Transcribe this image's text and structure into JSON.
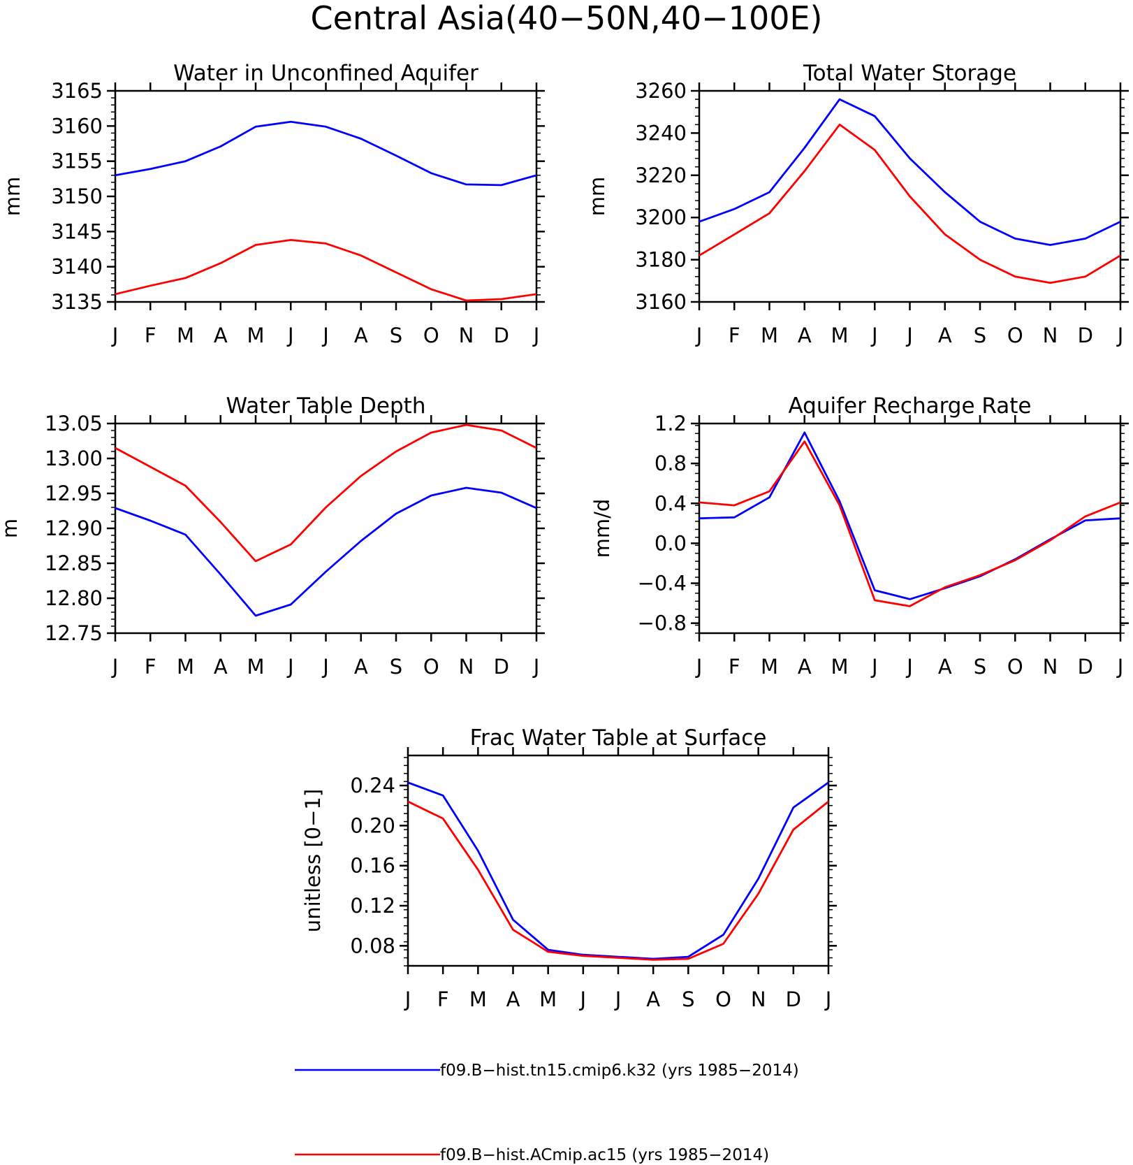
{
  "figure": {
    "title": "Central Asia(40−50N,40−100E)"
  },
  "legend": {
    "entries": [
      {
        "label": "f09.B−hist.tn15.cmip6.k32 (yrs 1985−2014)",
        "color": "#0000ff"
      },
      {
        "label": "f09.B−hist.ACmip.ac15 (yrs 1985−2014)",
        "color": "#ff0000"
      }
    ]
  },
  "chart_data": [
    {
      "type": "line",
      "title": "Water in Unconfined Aquifer",
      "ylabel": "mm",
      "xlabel": "",
      "categories": [
        "J",
        "F",
        "M",
        "A",
        "M",
        "J",
        "J",
        "A",
        "S",
        "O",
        "N",
        "D",
        "J"
      ],
      "ylim": [
        3135,
        3165
      ],
      "yticks": [
        "3135",
        "3140",
        "3145",
        "3150",
        "3155",
        "3160",
        "3165"
      ],
      "grid": false,
      "series": [
        {
          "name": "f09.B−hist.tn15.cmip6.k32 (yrs 1985−2014)",
          "color": "#0000ff",
          "values": [
            3153.0,
            3153.9,
            3155.0,
            3157.1,
            3159.9,
            3160.6,
            3159.9,
            3158.2,
            3155.8,
            3153.3,
            3151.7,
            3151.6,
            3153.0
          ]
        },
        {
          "name": "f09.B−hist.ACmip.ac15 (yrs 1985−2014)",
          "color": "#ff0000",
          "values": [
            3136.1,
            3137.3,
            3138.4,
            3140.5,
            3143.1,
            3143.8,
            3143.3,
            3141.6,
            3139.2,
            3136.8,
            3135.2,
            3135.4,
            3136.1
          ]
        }
      ]
    },
    {
      "type": "line",
      "title": "Total Water Storage",
      "ylabel": "mm",
      "xlabel": "",
      "categories": [
        "J",
        "F",
        "M",
        "A",
        "M",
        "J",
        "J",
        "A",
        "S",
        "O",
        "N",
        "D",
        "J"
      ],
      "ylim": [
        3160,
        3260
      ],
      "yticks": [
        "3160",
        "3180",
        "3200",
        "3220",
        "3240",
        "3260"
      ],
      "grid": false,
      "series": [
        {
          "name": "f09.B−hist.tn15.cmip6.k32 (yrs 1985−2014)",
          "color": "#0000ff",
          "values": [
            3198,
            3204,
            3212,
            3233,
            3256,
            3248,
            3228,
            3212,
            3198,
            3190,
            3187,
            3190,
            3198
          ]
        },
        {
          "name": "f09.B−hist.ACmip.ac15 (yrs 1985−2014)",
          "color": "#ff0000",
          "values": [
            3182,
            3192,
            3202,
            3222,
            3244,
            3232,
            3210,
            3192,
            3180,
            3172,
            3169,
            3172,
            3182
          ]
        }
      ]
    },
    {
      "type": "line",
      "title": "Water Table Depth",
      "ylabel": "m",
      "xlabel": "",
      "categories": [
        "J",
        "F",
        "M",
        "A",
        "M",
        "J",
        "J",
        "A",
        "S",
        "O",
        "N",
        "D",
        "J"
      ],
      "ylim": [
        12.75,
        13.05
      ],
      "yticks": [
        "12.75",
        "12.80",
        "12.85",
        "12.90",
        "12.95",
        "13.00",
        "13.05"
      ],
      "grid": false,
      "series": [
        {
          "name": "f09.B−hist.tn15.cmip6.k32 (yrs 1985−2014)",
          "color": "#0000ff",
          "values": [
            12.929,
            12.911,
            12.891,
            12.834,
            12.775,
            12.791,
            12.838,
            12.882,
            12.921,
            12.947,
            12.958,
            12.951,
            12.929
          ]
        },
        {
          "name": "f09.B−hist.ACmip.ac15 (yrs 1985−2014)",
          "color": "#ff0000",
          "values": [
            13.015,
            12.988,
            12.961,
            12.909,
            12.853,
            12.877,
            12.93,
            12.975,
            13.01,
            13.037,
            13.048,
            13.04,
            13.015
          ]
        }
      ]
    },
    {
      "type": "line",
      "title": "Aquifer Recharge Rate",
      "ylabel": "mm/d",
      "xlabel": "",
      "categories": [
        "J",
        "F",
        "M",
        "A",
        "M",
        "J",
        "J",
        "A",
        "S",
        "O",
        "N",
        "D",
        "J"
      ],
      "ylim": [
        -0.9,
        1.2
      ],
      "yticks": [
        "−0.8",
        "−0.4",
        "0.0",
        "0.4",
        "0.8",
        "1.2"
      ],
      "ytick_values": [
        -0.8,
        -0.4,
        0.0,
        0.4,
        0.8,
        1.2
      ],
      "grid": false,
      "series": [
        {
          "name": "f09.B−hist.tn15.cmip6.k32 (yrs 1985−2014)",
          "color": "#0000ff",
          "values": [
            0.25,
            0.26,
            0.46,
            1.11,
            0.42,
            -0.47,
            -0.56,
            -0.45,
            -0.33,
            -0.16,
            0.04,
            0.23,
            0.25
          ]
        },
        {
          "name": "f09.B−hist.ACmip.ac15 (yrs 1985−2014)",
          "color": "#ff0000",
          "values": [
            0.41,
            0.38,
            0.52,
            1.02,
            0.38,
            -0.57,
            -0.63,
            -0.44,
            -0.32,
            -0.17,
            0.03,
            0.27,
            0.41
          ]
        }
      ]
    },
    {
      "type": "line",
      "title": "Frac Water Table at Surface",
      "ylabel": "unitless [0−1]",
      "xlabel": "",
      "categories": [
        "J",
        "F",
        "M",
        "A",
        "M",
        "J",
        "J",
        "A",
        "S",
        "O",
        "N",
        "D",
        "J"
      ],
      "ylim": [
        0.06,
        0.27
      ],
      "yticks": [
        "0.08",
        "0.12",
        "0.16",
        "0.20",
        "0.24"
      ],
      "ytick_values": [
        0.08,
        0.12,
        0.16,
        0.2,
        0.24
      ],
      "grid": false,
      "series": [
        {
          "name": "f09.B−hist.tn15.cmip6.k32 (yrs 1985−2014)",
          "color": "#0000ff",
          "values": [
            0.243,
            0.23,
            0.175,
            0.106,
            0.076,
            0.071,
            0.069,
            0.067,
            0.069,
            0.091,
            0.147,
            0.218,
            0.243
          ]
        },
        {
          "name": "f09.B−hist.ACmip.ac15 (yrs 1985−2014)",
          "color": "#ff0000",
          "values": [
            0.224,
            0.207,
            0.156,
            0.096,
            0.074,
            0.07,
            0.068,
            0.066,
            0.067,
            0.082,
            0.132,
            0.196,
            0.224
          ]
        }
      ]
    }
  ]
}
